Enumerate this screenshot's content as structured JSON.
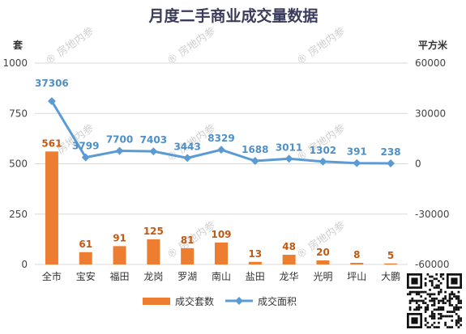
{
  "chart_data": {
    "type": "bar",
    "title": "月度二手商业成交量数据",
    "categories": [
      "全市",
      "宝安",
      "福田",
      "龙岗",
      "罗湖",
      "南山",
      "盐田",
      "龙华",
      "光明",
      "坪山",
      "大鹏"
    ],
    "series": [
      {
        "name": "成交套数",
        "type": "bar",
        "axis": "left",
        "values": [
          561,
          61,
          91,
          125,
          81,
          109,
          13,
          48,
          20,
          8,
          5
        ],
        "color": "#ed7d31"
      },
      {
        "name": "成交面积",
        "type": "line",
        "axis": "right",
        "values": [
          37306,
          3799,
          7700,
          7403,
          3443,
          8329,
          1688,
          3011,
          1302,
          391,
          238
        ],
        "color": "#5b9bd5"
      }
    ],
    "y_left": {
      "label": "套",
      "ylim": [
        0,
        1000
      ],
      "ticks": [
        0,
        250,
        500,
        750,
        1000
      ]
    },
    "y_right": {
      "label": "平方米",
      "ylim": [
        -60000,
        60000
      ],
      "ticks": [
        -60000,
        -30000,
        0,
        30000,
        60000
      ]
    },
    "grid": true,
    "legend": "bottom",
    "watermark": "房地内参"
  }
}
